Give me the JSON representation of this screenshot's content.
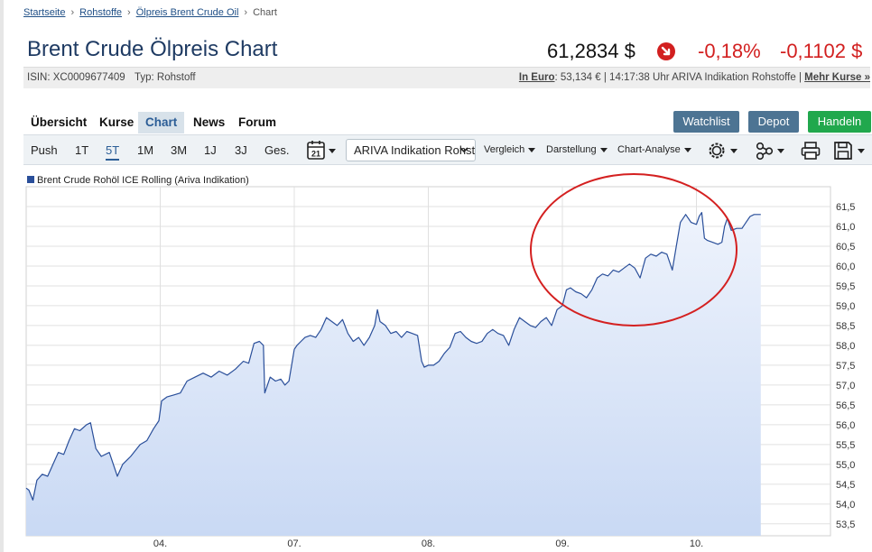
{
  "breadcrumb": {
    "items": [
      "Startseite",
      "Rohstoffe",
      "Ölpreis Brent Crude Oil"
    ],
    "current": "Chart",
    "separator": "›"
  },
  "header": {
    "title": "Brent Crude Ölpreis Chart",
    "price": "61,2834 $",
    "change_pct": "-0,18%",
    "change_abs": "-0,1102 $",
    "down_color": "#d21f1f"
  },
  "info": {
    "isin": "ISIN: XC0009677409",
    "typ": "Typ: Rohstoff",
    "euro_label": "In Euro",
    "euro_value": ": 53,134 € | 14:17:38 Uhr ARIVA Indikation Rohstoffe | ",
    "more_label": "Mehr Kurse »"
  },
  "tabs": [
    "Übersicht",
    "Kurse",
    "Chart",
    "News",
    "Forum"
  ],
  "active_tab": "Chart",
  "buttons": {
    "watchlist": "Watchlist",
    "depot": "Depot",
    "handeln": "Handeln"
  },
  "toolbar": {
    "ranges": [
      "Push",
      "1T",
      "5T",
      "1M",
      "3M",
      "1J",
      "3J",
      "Ges."
    ],
    "active_range": "5T",
    "calendar_day": "21",
    "quelle_select": "ARIVA Indikation Rohstoffe",
    "vergleich": "Vergleich",
    "darstellung": "Darstellung",
    "chart_analyse": "Chart-Analyse",
    "icons": [
      "calendar-icon",
      "gear-icon",
      "share-icon",
      "print-icon",
      "save-icon"
    ]
  },
  "chart_data": {
    "type": "area",
    "series": [
      {
        "name": "Brent Crude Rohöl ICE Rolling (Ariva Indikation)",
        "color": "#2a4f9a",
        "fill_color": "#c9d9f4",
        "points": [
          [
            0.0,
            54.4
          ],
          [
            0.02,
            54.35
          ],
          [
            0.05,
            54.1
          ],
          [
            0.08,
            54.6
          ],
          [
            0.12,
            54.75
          ],
          [
            0.16,
            54.7
          ],
          [
            0.2,
            55.0
          ],
          [
            0.24,
            55.3
          ],
          [
            0.28,
            55.25
          ],
          [
            0.32,
            55.6
          ],
          [
            0.36,
            55.9
          ],
          [
            0.4,
            55.85
          ],
          [
            0.45,
            56.0
          ],
          [
            0.48,
            56.05
          ],
          [
            0.52,
            55.4
          ],
          [
            0.56,
            55.2
          ],
          [
            0.62,
            55.3
          ],
          [
            0.68,
            54.7
          ],
          [
            0.72,
            55.0
          ],
          [
            0.78,
            55.2
          ],
          [
            0.85,
            55.5
          ],
          [
            0.9,
            55.6
          ],
          [
            0.95,
            55.9
          ],
          [
            0.99,
            56.1
          ],
          [
            1.01,
            56.6
          ],
          [
            1.05,
            56.7
          ],
          [
            1.1,
            56.75
          ],
          [
            1.15,
            56.8
          ],
          [
            1.2,
            57.1
          ],
          [
            1.26,
            57.2
          ],
          [
            1.32,
            57.3
          ],
          [
            1.38,
            57.2
          ],
          [
            1.44,
            57.35
          ],
          [
            1.5,
            57.25
          ],
          [
            1.56,
            57.4
          ],
          [
            1.62,
            57.6
          ],
          [
            1.66,
            57.55
          ],
          [
            1.7,
            58.05
          ],
          [
            1.74,
            58.1
          ],
          [
            1.77,
            58.0
          ],
          [
            1.78,
            56.8
          ],
          [
            1.8,
            57.0
          ],
          [
            1.82,
            57.2
          ],
          [
            1.86,
            57.1
          ],
          [
            1.9,
            57.15
          ],
          [
            1.93,
            57.0
          ],
          [
            1.96,
            57.1
          ],
          [
            2.0,
            57.9
          ],
          [
            2.02,
            58.0
          ],
          [
            2.05,
            58.1
          ],
          [
            2.08,
            58.2
          ],
          [
            2.12,
            58.25
          ],
          [
            2.16,
            58.2
          ],
          [
            2.2,
            58.4
          ],
          [
            2.24,
            58.7
          ],
          [
            2.28,
            58.6
          ],
          [
            2.32,
            58.5
          ],
          [
            2.36,
            58.65
          ],
          [
            2.4,
            58.3
          ],
          [
            2.44,
            58.1
          ],
          [
            2.48,
            58.2
          ],
          [
            2.52,
            58.0
          ],
          [
            2.56,
            58.2
          ],
          [
            2.6,
            58.5
          ],
          [
            2.62,
            58.9
          ],
          [
            2.64,
            58.6
          ],
          [
            2.68,
            58.5
          ],
          [
            2.72,
            58.3
          ],
          [
            2.76,
            58.35
          ],
          [
            2.8,
            58.2
          ],
          [
            2.84,
            58.35
          ],
          [
            2.88,
            58.3
          ],
          [
            2.92,
            58.25
          ],
          [
            2.95,
            57.6
          ],
          [
            2.97,
            57.45
          ],
          [
            3.0,
            57.5
          ],
          [
            3.04,
            57.5
          ],
          [
            3.08,
            57.6
          ],
          [
            3.12,
            57.8
          ],
          [
            3.16,
            57.95
          ],
          [
            3.2,
            58.3
          ],
          [
            3.24,
            58.35
          ],
          [
            3.28,
            58.2
          ],
          [
            3.32,
            58.1
          ],
          [
            3.36,
            58.05
          ],
          [
            3.4,
            58.1
          ],
          [
            3.44,
            58.3
          ],
          [
            3.48,
            58.4
          ],
          [
            3.52,
            58.3
          ],
          [
            3.56,
            58.25
          ],
          [
            3.6,
            58.0
          ],
          [
            3.64,
            58.4
          ],
          [
            3.68,
            58.7
          ],
          [
            3.72,
            58.6
          ],
          [
            3.76,
            58.5
          ],
          [
            3.8,
            58.45
          ],
          [
            3.84,
            58.6
          ],
          [
            3.88,
            58.7
          ],
          [
            3.92,
            58.5
          ],
          [
            3.96,
            58.9
          ],
          [
            4.0,
            59.0
          ],
          [
            4.03,
            59.4
          ],
          [
            4.06,
            59.45
          ],
          [
            4.1,
            59.35
          ],
          [
            4.14,
            59.3
          ],
          [
            4.18,
            59.2
          ],
          [
            4.22,
            59.4
          ],
          [
            4.26,
            59.7
          ],
          [
            4.3,
            59.8
          ],
          [
            4.34,
            59.75
          ],
          [
            4.38,
            59.9
          ],
          [
            4.42,
            59.85
          ],
          [
            4.46,
            59.95
          ],
          [
            4.5,
            60.05
          ],
          [
            4.54,
            59.95
          ],
          [
            4.58,
            59.7
          ],
          [
            4.62,
            60.2
          ],
          [
            4.66,
            60.3
          ],
          [
            4.7,
            60.25
          ],
          [
            4.74,
            60.35
          ],
          [
            4.78,
            60.3
          ],
          [
            4.82,
            59.9
          ],
          [
            4.85,
            60.5
          ],
          [
            4.88,
            61.1
          ],
          [
            4.92,
            61.3
          ],
          [
            4.96,
            61.1
          ],
          [
            5.0,
            61.05
          ],
          [
            5.02,
            61.25
          ],
          [
            5.04,
            61.35
          ],
          [
            5.06,
            60.7
          ],
          [
            5.08,
            60.65
          ],
          [
            5.12,
            60.6
          ],
          [
            5.16,
            60.55
          ],
          [
            5.19,
            60.6
          ],
          [
            5.21,
            61.0
          ],
          [
            5.23,
            61.2
          ],
          [
            5.26,
            60.9
          ],
          [
            5.3,
            60.95
          ],
          [
            5.34,
            60.95
          ],
          [
            5.37,
            61.1
          ],
          [
            5.4,
            61.25
          ],
          [
            5.43,
            61.3
          ],
          [
            5.48,
            61.3
          ]
        ]
      }
    ],
    "x_ticks": [
      {
        "x": 1,
        "label": "04."
      },
      {
        "x": 2,
        "label": "07."
      },
      {
        "x": 3,
        "label": "08."
      },
      {
        "x": 4,
        "label": "09."
      },
      {
        "x": 5,
        "label": "10."
      }
    ],
    "x_range": [
      0,
      6.0
    ],
    "y_ticks": [
      53.5,
      54.0,
      54.5,
      55.0,
      55.5,
      56.0,
      56.5,
      57.0,
      57.5,
      58.0,
      58.5,
      59.0,
      59.5,
      60.0,
      60.5,
      61.0,
      61.5
    ],
    "y_range": [
      53.2,
      62.0
    ],
    "grid": true,
    "legend_position": "top-left",
    "annotation": "red-oval-highlight"
  }
}
